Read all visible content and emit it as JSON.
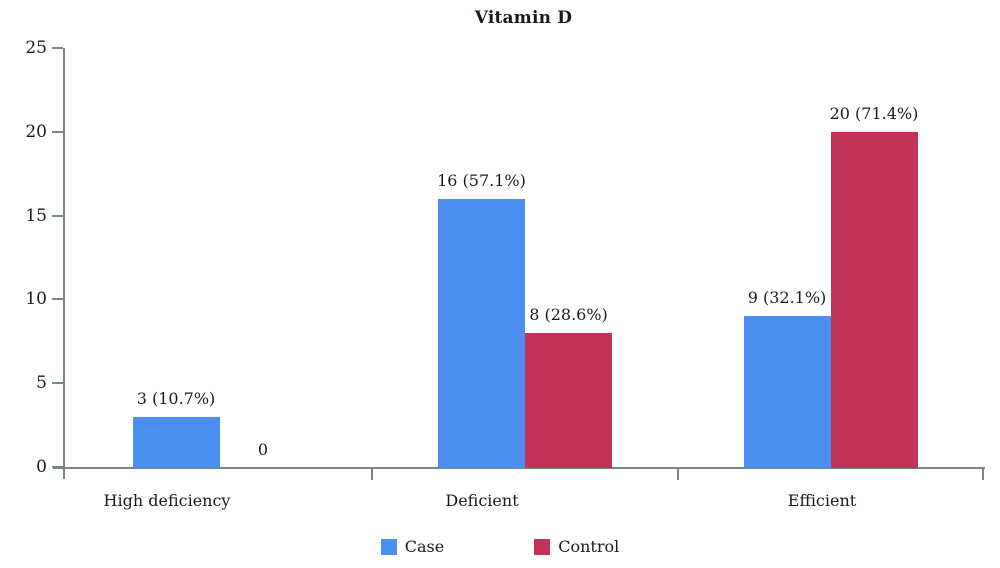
{
  "chart_data": {
    "type": "bar",
    "title": "Vitamin D",
    "categories": [
      "High deficiency",
      "Deficient",
      "Efficient"
    ],
    "series": [
      {
        "name": "Case",
        "color": "#4a8ef0",
        "values": [
          3,
          16,
          9
        ],
        "labels": [
          "3 (10.7%)",
          "16 (57.1%)",
          "9 (32.1%)"
        ]
      },
      {
        "name": "Control",
        "color": "#c23456",
        "values": [
          0,
          8,
          20
        ],
        "labels": [
          "0",
          "8 (28.6%)",
          "20 (71.4%)"
        ]
      }
    ],
    "percent_base_note": "",
    "ylim": [
      0,
      25
    ],
    "yticks": [
      0,
      5,
      10,
      15,
      20,
      25
    ],
    "grid": "off",
    "legend_position": "bottom-center",
    "axis_color": "#778686",
    "text_color": "#1b1826",
    "background_color": "#ffffff"
  }
}
